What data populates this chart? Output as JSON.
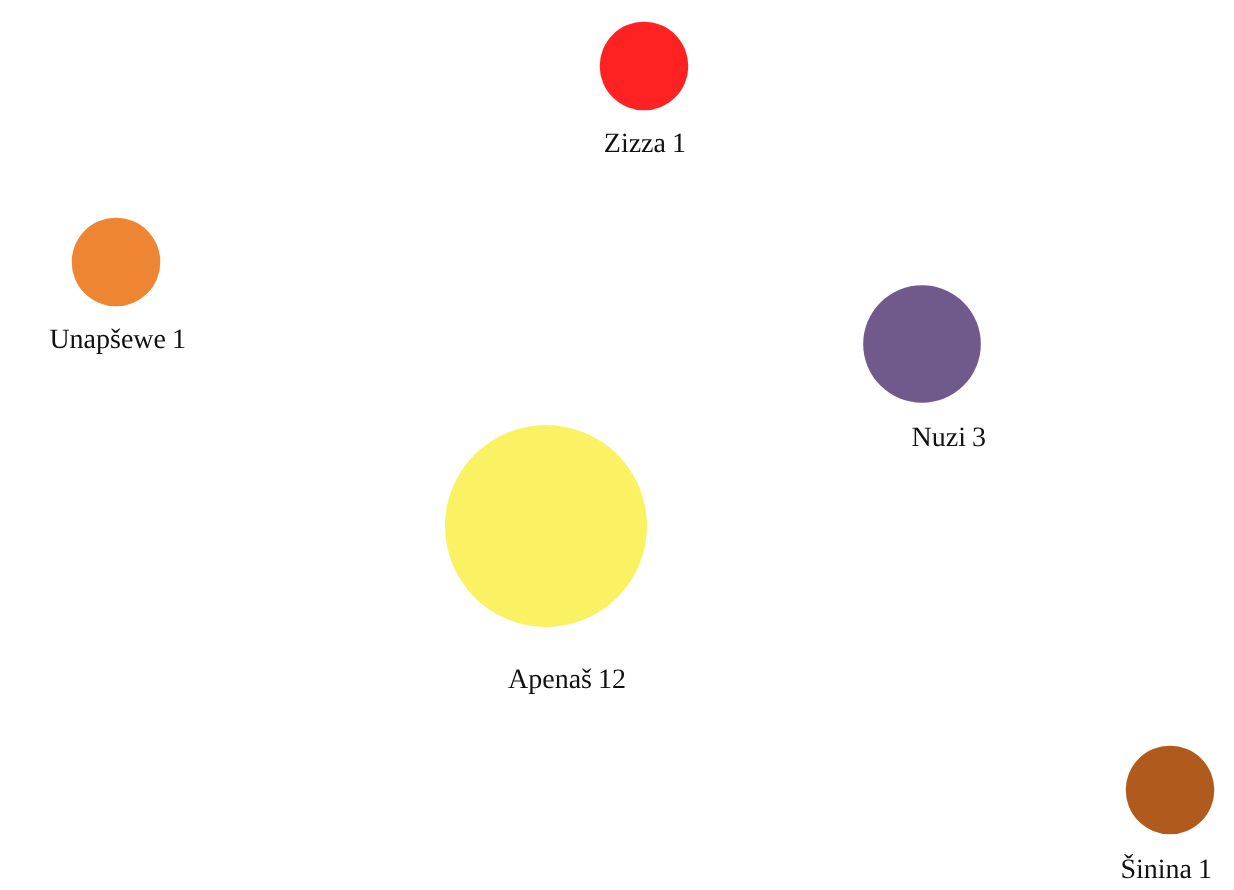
{
  "chart_data": {
    "type": "other",
    "categories": [
      "Zizza",
      "Unapšewe",
      "Nuzi",
      "Apenaš",
      "Šinina"
    ],
    "values": [
      1,
      1,
      3,
      12,
      1
    ],
    "colors": [
      "#ff2222",
      "#ee8533",
      "#705a8c",
      "#faf262",
      "#b05a1e"
    ],
    "data_labels": true
  }
}
